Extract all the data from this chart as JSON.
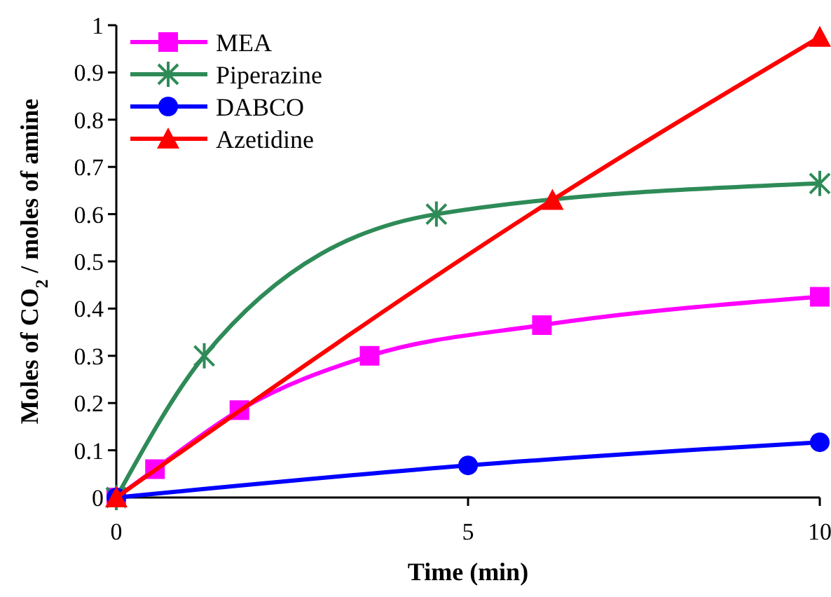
{
  "chart_data": {
    "type": "line",
    "xlabel": "Time (min)",
    "ylabel": "Moles of CO$_{2}$ / moles of amine",
    "xlim": [
      0,
      10
    ],
    "xticks": [
      0,
      5,
      10
    ],
    "ylim": [
      0,
      1
    ],
    "yticks": [
      0,
      0.1,
      0.2,
      0.3,
      0.4,
      0.5,
      0.6,
      0.7,
      0.8,
      0.9,
      1
    ],
    "grid": false,
    "legend": "top left",
    "line_style": "solid",
    "series": [
      {
        "name": "MEA",
        "color": "#ff00ff",
        "marker": "square",
        "x": [
          0,
          0.55,
          1.75,
          3.6,
          6.05,
          10
        ],
        "values": [
          0,
          0.06,
          0.185,
          0.3,
          0.365,
          0.425
        ]
      },
      {
        "name": "Piperazine",
        "color": "#2e8b57",
        "marker": "cross",
        "x": [
          0,
          1.25,
          4.55,
          10
        ],
        "values": [
          0,
          0.3,
          0.6,
          0.665
        ]
      },
      {
        "name": "DABCO",
        "color": "#0000ff",
        "marker": "circle",
        "x": [
          0,
          5,
          10
        ],
        "values": [
          0,
          0.068,
          0.117
        ]
      },
      {
        "name": "Azetidine",
        "color": "#ff0000",
        "marker": "triangle",
        "x": [
          0,
          6.2,
          10
        ],
        "values": [
          0,
          0.63,
          0.975
        ]
      }
    ]
  }
}
